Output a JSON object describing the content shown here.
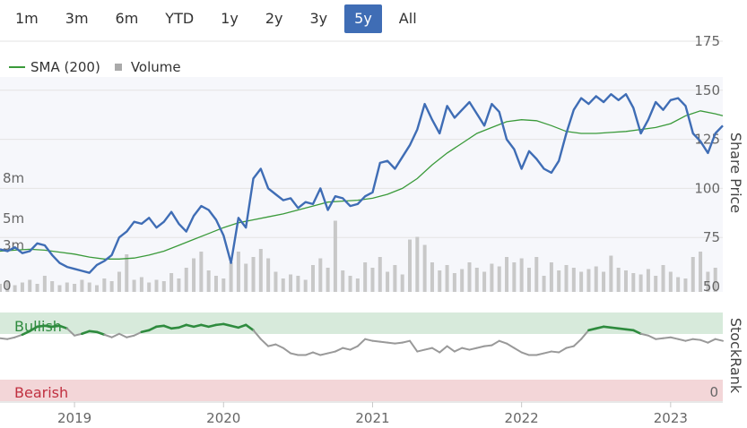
{
  "range_selector": {
    "options": [
      "1m",
      "3m",
      "6m",
      "YTD",
      "1y",
      "2y",
      "3y",
      "5y",
      "All"
    ],
    "selected": "5y"
  },
  "legend": {
    "sma_label": "SMA (200)",
    "volume_label": "Volume"
  },
  "colors": {
    "price": "#3f6db5",
    "sma": "#3a9a3a",
    "volume": "#c8c8c8",
    "bullish_band": "#d7eadb",
    "bearish_band": "#f3d6d8",
    "bullish_text": "#2e8b3e",
    "bearish_text": "#c03040",
    "rank_neutral": "#999999",
    "rank_bull": "#2e8b3e"
  },
  "chart_data": {
    "type": "line",
    "price_axis": {
      "title": "Share Price",
      "ticks": [
        50,
        75,
        100,
        125,
        150,
        175
      ],
      "range": [
        50,
        175
      ]
    },
    "volume_axis": {
      "ticks": [
        0,
        3,
        5,
        8
      ],
      "tick_labels": [
        "0",
        "3m",
        "5m",
        "8m"
      ],
      "range": [
        0,
        8
      ]
    },
    "x_axis": {
      "ticks": [
        "2019",
        "2020",
        "2021",
        "2022",
        "2023"
      ],
      "range": [
        2018.5,
        2023.35
      ]
    },
    "series": [
      {
        "name": "Share Price",
        "x": [
          2018.5,
          2018.55,
          2018.6,
          2018.65,
          2018.7,
          2018.75,
          2018.8,
          2018.85,
          2018.9,
          2018.95,
          2019.0,
          2019.05,
          2019.1,
          2019.15,
          2019.2,
          2019.25,
          2019.3,
          2019.35,
          2019.4,
          2019.45,
          2019.5,
          2019.55,
          2019.6,
          2019.65,
          2019.7,
          2019.75,
          2019.8,
          2019.85,
          2019.9,
          2019.95,
          2020.0,
          2020.05,
          2020.1,
          2020.15,
          2020.2,
          2020.25,
          2020.3,
          2020.35,
          2020.4,
          2020.45,
          2020.5,
          2020.55,
          2020.6,
          2020.65,
          2020.7,
          2020.75,
          2020.8,
          2020.85,
          2020.9,
          2020.95,
          2021.0,
          2021.05,
          2021.1,
          2021.15,
          2021.2,
          2021.25,
          2021.3,
          2021.35,
          2021.4,
          2021.45,
          2021.5,
          2021.55,
          2021.6,
          2021.65,
          2021.7,
          2021.75,
          2021.8,
          2021.85,
          2021.9,
          2021.95,
          2022.0,
          2022.05,
          2022.1,
          2022.15,
          2022.2,
          2022.25,
          2022.3,
          2022.35,
          2022.4,
          2022.45,
          2022.5,
          2022.55,
          2022.6,
          2022.65,
          2022.7,
          2022.75,
          2022.8,
          2022.85,
          2022.9,
          2022.95,
          2023.0,
          2023.05,
          2023.1,
          2023.15,
          2023.2,
          2023.25,
          2023.3,
          2023.35
        ],
        "values": [
          69,
          68,
          70,
          67,
          68,
          72,
          71,
          66,
          62,
          60,
          59,
          58,
          57,
          61,
          63,
          66,
          75,
          78,
          83,
          82,
          85,
          80,
          83,
          88,
          82,
          78,
          86,
          91,
          89,
          84,
          76,
          62,
          85,
          80,
          105,
          110,
          100,
          97,
          94,
          95,
          90,
          93,
          92,
          100,
          89,
          96,
          95,
          91,
          92,
          96,
          98,
          113,
          114,
          110,
          116,
          122,
          130,
          143,
          135,
          128,
          142,
          136,
          140,
          144,
          138,
          132,
          143,
          139,
          125,
          120,
          110,
          119,
          115,
          110,
          108,
          114,
          128,
          140,
          146,
          143,
          147,
          144,
          148,
          145,
          148,
          141,
          128,
          135,
          144,
          140,
          145,
          146,
          142,
          128,
          124,
          118,
          128,
          132
        ]
      },
      {
        "name": "SMA (200)",
        "x": [
          2018.5,
          2018.6,
          2018.7,
          2018.8,
          2018.9,
          2019.0,
          2019.1,
          2019.2,
          2019.3,
          2019.4,
          2019.5,
          2019.6,
          2019.7,
          2019.8,
          2019.9,
          2020.0,
          2020.1,
          2020.2,
          2020.3,
          2020.4,
          2020.5,
          2020.6,
          2020.7,
          2020.8,
          2020.9,
          2021.0,
          2021.1,
          2021.2,
          2021.3,
          2021.4,
          2021.5,
          2021.6,
          2021.7,
          2021.8,
          2021.9,
          2022.0,
          2022.1,
          2022.2,
          2022.3,
          2022.4,
          2022.5,
          2022.6,
          2022.7,
          2022.8,
          2022.9,
          2023.0,
          2023.1,
          2023.2,
          2023.3,
          2023.35
        ],
        "values": [
          68,
          68.5,
          69,
          68.5,
          67.5,
          66.5,
          65,
          64,
          64,
          64.5,
          66,
          68,
          71,
          74,
          77,
          80,
          82.5,
          84,
          85.5,
          87,
          89,
          91,
          93,
          93.5,
          94,
          95,
          97,
          100,
          105,
          112,
          118,
          123,
          128,
          131,
          134,
          135,
          134.5,
          132,
          129,
          128,
          128,
          128.5,
          129,
          130,
          131,
          133,
          137,
          139.5,
          138,
          137
        ]
      },
      {
        "name": "Volume",
        "x": [
          2018.5,
          2018.55,
          2018.6,
          2018.65,
          2018.7,
          2018.75,
          2018.8,
          2018.85,
          2018.9,
          2018.95,
          2019.0,
          2019.05,
          2019.1,
          2019.15,
          2019.2,
          2019.25,
          2019.3,
          2019.35,
          2019.4,
          2019.45,
          2019.5,
          2019.55,
          2019.6,
          2019.65,
          2019.7,
          2019.75,
          2019.8,
          2019.85,
          2019.9,
          2019.95,
          2020.0,
          2020.05,
          2020.1,
          2020.15,
          2020.2,
          2020.25,
          2020.3,
          2020.35,
          2020.4,
          2020.45,
          2020.5,
          2020.55,
          2020.6,
          2020.65,
          2020.7,
          2020.75,
          2020.8,
          2020.85,
          2020.9,
          2020.95,
          2021.0,
          2021.05,
          2021.1,
          2021.15,
          2021.2,
          2021.25,
          2021.3,
          2021.35,
          2021.4,
          2021.45,
          2021.5,
          2021.55,
          2021.6,
          2021.65,
          2021.7,
          2021.75,
          2021.8,
          2021.85,
          2021.9,
          2021.95,
          2022.0,
          2022.05,
          2022.1,
          2022.15,
          2022.2,
          2022.25,
          2022.3,
          2022.35,
          2022.4,
          2022.45,
          2022.5,
          2022.55,
          2022.6,
          2022.65,
          2022.7,
          2022.75,
          2022.8,
          2022.85,
          2022.9,
          2022.95,
          2023.0,
          2023.05,
          2023.1,
          2023.15,
          2023.2,
          2023.25,
          2023.3
        ],
        "values": [
          0.6,
          0.8,
          0.5,
          0.7,
          0.9,
          0.6,
          1.2,
          0.8,
          0.5,
          0.7,
          0.6,
          0.9,
          0.7,
          0.5,
          1.0,
          0.8,
          1.5,
          2.8,
          0.9,
          1.1,
          0.7,
          0.9,
          0.8,
          1.4,
          1.0,
          1.8,
          2.5,
          3.0,
          1.6,
          1.2,
          1.0,
          2.2,
          3.0,
          2.1,
          2.6,
          3.2,
          2.5,
          1.5,
          1.0,
          1.3,
          1.2,
          0.9,
          2.0,
          2.5,
          1.8,
          5.3,
          1.6,
          1.2,
          1.0,
          2.2,
          1.8,
          2.6,
          1.5,
          2.0,
          1.3,
          3.9,
          4.1,
          3.5,
          2.2,
          1.6,
          2.0,
          1.4,
          1.7,
          2.2,
          1.8,
          1.5,
          2.1,
          1.9,
          2.6,
          2.2,
          2.5,
          1.8,
          2.6,
          1.2,
          2.2,
          1.6,
          2.0,
          1.8,
          1.5,
          1.7,
          1.9,
          1.5,
          2.7,
          1.8,
          1.6,
          1.4,
          1.3,
          1.7,
          1.2,
          2.0,
          1.5,
          1.1,
          1.0,
          2.6,
          3.0,
          1.5,
          1.8
        ]
      },
      {
        "name": "StockRank",
        "x": [
          2018.5,
          2018.55,
          2018.6,
          2018.65,
          2018.7,
          2018.75,
          2018.8,
          2018.85,
          2018.9,
          2018.95,
          2019.0,
          2019.05,
          2019.1,
          2019.15,
          2019.2,
          2019.25,
          2019.3,
          2019.35,
          2019.4,
          2019.45,
          2019.5,
          2019.55,
          2019.6,
          2019.65,
          2019.7,
          2019.75,
          2019.8,
          2019.85,
          2019.9,
          2019.95,
          2020.0,
          2020.05,
          2020.1,
          2020.15,
          2020.2,
          2020.25,
          2020.3,
          2020.35,
          2020.4,
          2020.45,
          2020.5,
          2020.55,
          2020.6,
          2020.65,
          2020.7,
          2020.75,
          2020.8,
          2020.85,
          2020.9,
          2020.95,
          2021.0,
          2021.05,
          2021.1,
          2021.15,
          2021.2,
          2021.25,
          2021.3,
          2021.35,
          2021.4,
          2021.45,
          2021.5,
          2021.55,
          2021.6,
          2021.65,
          2021.7,
          2021.75,
          2021.8,
          2021.85,
          2021.9,
          2021.95,
          2022.0,
          2022.05,
          2022.1,
          2022.15,
          2022.2,
          2022.25,
          2022.3,
          2022.35,
          2022.4,
          2022.45,
          2022.5,
          2022.55,
          2022.6,
          2022.65,
          2022.7,
          2022.75,
          2022.8,
          2022.85,
          2022.9,
          2022.95,
          2023.0,
          2023.05,
          2023.1,
          2023.15,
          2023.2,
          2023.25,
          2023.3,
          2023.35
        ],
        "values": [
          71,
          70,
          72,
          75,
          79,
          84,
          85,
          84,
          85,
          82,
          74,
          76,
          79,
          78,
          75,
          72,
          76,
          72,
          74,
          78,
          80,
          84,
          85,
          82,
          83,
          86,
          84,
          86,
          84,
          86,
          87,
          85,
          83,
          86,
          80,
          70,
          62,
          64,
          60,
          54,
          52,
          52,
          55,
          52,
          54,
          56,
          60,
          58,
          62,
          70,
          68,
          67,
          66,
          65,
          66,
          68,
          56,
          58,
          60,
          55,
          62,
          56,
          60,
          58,
          60,
          62,
          63,
          68,
          65,
          60,
          55,
          52,
          52,
          54,
          56,
          55,
          60,
          62,
          70,
          80,
          82,
          84,
          83,
          82,
          81,
          80,
          76,
          74,
          70,
          71,
          72,
          70,
          68,
          70,
          69,
          66,
          70,
          68
        ]
      }
    ],
    "rank_axis": {
      "title": "StockRank",
      "range": [
        0,
        100
      ],
      "bands": [
        {
          "label": "Bullish",
          "from": 75,
          "to": 100
        },
        {
          "label": "Bearish",
          "from": 0,
          "to": 15
        }
      ],
      "bull_threshold": 75,
      "tick_label": "0"
    }
  }
}
